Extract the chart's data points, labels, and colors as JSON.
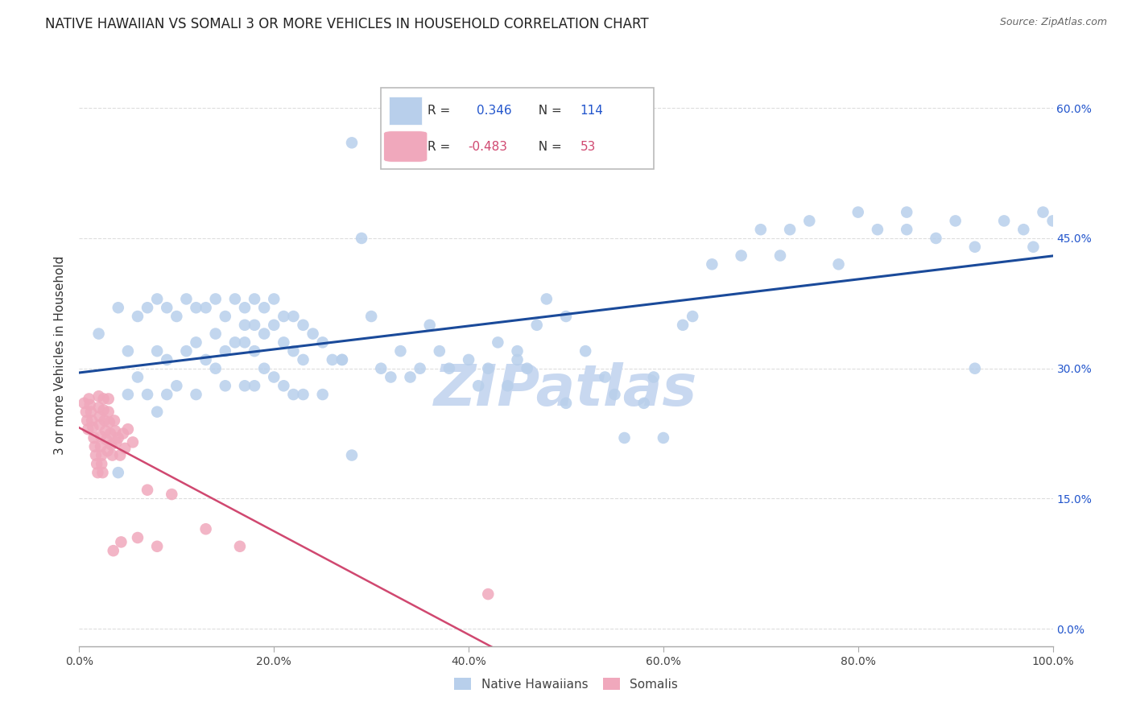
{
  "title": "NATIVE HAWAIIAN VS SOMALI 3 OR MORE VEHICLES IN HOUSEHOLD CORRELATION CHART",
  "source": "Source: ZipAtlas.com",
  "ylabel": "3 or more Vehicles in Household",
  "xlim": [
    0.0,
    1.0
  ],
  "ylim": [
    -0.02,
    0.65
  ],
  "xticks": [
    0.0,
    0.2,
    0.4,
    0.6,
    0.8,
    1.0
  ],
  "xtick_labels": [
    "0.0%",
    "20.0%",
    "40.0%",
    "60.0%",
    "80.0%",
    "100.0%"
  ],
  "ytick_vals": [
    0.0,
    0.15,
    0.3,
    0.45,
    0.6
  ],
  "ytick_labels": [
    "0.0%",
    "15.0%",
    "30.0%",
    "45.0%",
    "60.0%"
  ],
  "native_R": "0.346",
  "native_N": "114",
  "somali_R": "-0.483",
  "somali_N": "53",
  "blue_scatter": "#B8CFEB",
  "blue_line": "#1A4A9A",
  "pink_scatter": "#F0A8BC",
  "pink_line": "#D04870",
  "watermark_color": "#C8D8F0",
  "bg": "#FFFFFF",
  "grid_color": "#DDDDDD",
  "native_hawaiian_x": [
    0.02,
    0.04,
    0.05,
    0.05,
    0.06,
    0.06,
    0.07,
    0.07,
    0.08,
    0.08,
    0.08,
    0.09,
    0.09,
    0.09,
    0.1,
    0.1,
    0.11,
    0.11,
    0.12,
    0.12,
    0.12,
    0.13,
    0.13,
    0.14,
    0.14,
    0.14,
    0.15,
    0.15,
    0.15,
    0.16,
    0.16,
    0.17,
    0.17,
    0.17,
    0.17,
    0.18,
    0.18,
    0.18,
    0.18,
    0.19,
    0.19,
    0.19,
    0.2,
    0.2,
    0.2,
    0.21,
    0.21,
    0.21,
    0.22,
    0.22,
    0.22,
    0.23,
    0.23,
    0.23,
    0.24,
    0.25,
    0.25,
    0.26,
    0.27,
    0.28,
    0.29,
    0.3,
    0.31,
    0.32,
    0.33,
    0.34,
    0.35,
    0.36,
    0.37,
    0.38,
    0.4,
    0.41,
    0.42,
    0.43,
    0.44,
    0.45,
    0.46,
    0.48,
    0.5,
    0.52,
    0.54,
    0.56,
    0.58,
    0.6,
    0.62,
    0.65,
    0.7,
    0.72,
    0.75,
    0.8,
    0.82,
    0.85,
    0.88,
    0.9,
    0.92,
    0.95,
    0.97,
    0.98,
    0.99,
    1.0,
    0.04,
    0.27,
    0.28,
    0.45,
    0.47,
    0.5,
    0.55,
    0.59,
    0.63,
    0.68,
    0.73,
    0.78,
    0.85,
    0.92
  ],
  "native_hawaiian_y": [
    0.34,
    0.37,
    0.32,
    0.27,
    0.36,
    0.29,
    0.37,
    0.27,
    0.38,
    0.32,
    0.25,
    0.37,
    0.31,
    0.27,
    0.36,
    0.28,
    0.38,
    0.32,
    0.37,
    0.33,
    0.27,
    0.37,
    0.31,
    0.38,
    0.34,
    0.3,
    0.36,
    0.32,
    0.28,
    0.38,
    0.33,
    0.37,
    0.35,
    0.33,
    0.28,
    0.38,
    0.35,
    0.32,
    0.28,
    0.37,
    0.34,
    0.3,
    0.38,
    0.35,
    0.29,
    0.36,
    0.33,
    0.28,
    0.36,
    0.32,
    0.27,
    0.35,
    0.31,
    0.27,
    0.34,
    0.33,
    0.27,
    0.31,
    0.31,
    0.56,
    0.45,
    0.36,
    0.3,
    0.29,
    0.32,
    0.29,
    0.3,
    0.35,
    0.32,
    0.3,
    0.31,
    0.28,
    0.3,
    0.33,
    0.28,
    0.32,
    0.3,
    0.38,
    0.36,
    0.32,
    0.29,
    0.22,
    0.26,
    0.22,
    0.35,
    0.42,
    0.46,
    0.43,
    0.47,
    0.48,
    0.46,
    0.48,
    0.45,
    0.47,
    0.3,
    0.47,
    0.46,
    0.44,
    0.48,
    0.47,
    0.18,
    0.31,
    0.2,
    0.31,
    0.35,
    0.26,
    0.27,
    0.29,
    0.36,
    0.43,
    0.46,
    0.42,
    0.46,
    0.44
  ],
  "somali_x": [
    0.005,
    0.007,
    0.008,
    0.009,
    0.01,
    0.011,
    0.012,
    0.013,
    0.014,
    0.015,
    0.016,
    0.017,
    0.018,
    0.019,
    0.02,
    0.02,
    0.021,
    0.021,
    0.022,
    0.022,
    0.023,
    0.023,
    0.024,
    0.025,
    0.025,
    0.026,
    0.027,
    0.028,
    0.029,
    0.03,
    0.03,
    0.031,
    0.032,
    0.033,
    0.034,
    0.035,
    0.036,
    0.037,
    0.038,
    0.04,
    0.042,
    0.043,
    0.045,
    0.047,
    0.05,
    0.055,
    0.06,
    0.07,
    0.08,
    0.095,
    0.13,
    0.165,
    0.42
  ],
  "somali_y": [
    0.26,
    0.25,
    0.24,
    0.23,
    0.265,
    0.258,
    0.25,
    0.24,
    0.232,
    0.22,
    0.21,
    0.2,
    0.19,
    0.18,
    0.268,
    0.255,
    0.245,
    0.235,
    0.222,
    0.21,
    0.2,
    0.19,
    0.18,
    0.265,
    0.252,
    0.24,
    0.228,
    0.218,
    0.205,
    0.265,
    0.25,
    0.238,
    0.225,
    0.212,
    0.2,
    0.09,
    0.24,
    0.228,
    0.215,
    0.22,
    0.2,
    0.1,
    0.225,
    0.208,
    0.23,
    0.215,
    0.105,
    0.16,
    0.095,
    0.155,
    0.115,
    0.095,
    0.04
  ]
}
